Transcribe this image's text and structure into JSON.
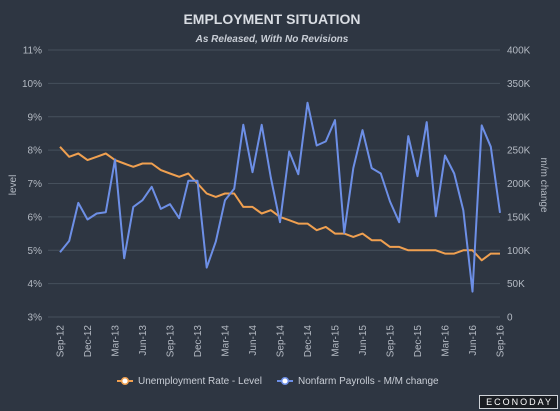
{
  "chart_data": {
    "type": "line",
    "title": "EMPLOYMENT SITUATION",
    "subtitle": "As Released, With No Revisions",
    "ylabel_left": "level",
    "ylabel_right": "m/m change",
    "x_tick_labels": [
      "Sep-12",
      "Dec-12",
      "Mar-13",
      "Jun-13",
      "Sep-13",
      "Dec-13",
      "Mar-14",
      "Jun-14",
      "Sep-14",
      "Dec-14",
      "Mar-15",
      "Jun-15",
      "Sep-15",
      "Dec-15",
      "Mar-16",
      "Jun-16",
      "Sep-16"
    ],
    "y_left_ticks": [
      "3%",
      "4%",
      "5%",
      "6%",
      "7%",
      "8%",
      "9%",
      "10%",
      "11%"
    ],
    "y_right_ticks": [
      "0",
      "50K",
      "100K",
      "150K",
      "200K",
      "250K",
      "300K",
      "350K",
      "400K"
    ],
    "y_left_range": [
      3,
      11
    ],
    "y_right_range": [
      0,
      400
    ],
    "grid": true,
    "legend_position": "bottom",
    "x": [
      "Sep-12",
      "Oct-12",
      "Nov-12",
      "Dec-12",
      "Jan-13",
      "Feb-13",
      "Mar-13",
      "Apr-13",
      "May-13",
      "Jun-13",
      "Jul-13",
      "Aug-13",
      "Sep-13",
      "Oct-13",
      "Nov-13",
      "Dec-13",
      "Jan-14",
      "Feb-14",
      "Mar-14",
      "Apr-14",
      "May-14",
      "Jun-14",
      "Jul-14",
      "Aug-14",
      "Sep-14",
      "Oct-14",
      "Nov-14",
      "Dec-14",
      "Jan-15",
      "Feb-15",
      "Mar-15",
      "Apr-15",
      "May-15",
      "Jun-15",
      "Jul-15",
      "Aug-15",
      "Sep-15",
      "Oct-15",
      "Nov-15",
      "Dec-15",
      "Jan-16",
      "Feb-16",
      "Mar-16",
      "Apr-16",
      "May-16",
      "Jun-16",
      "Jul-16",
      "Aug-16",
      "Sep-16"
    ],
    "series": [
      {
        "name": "Unemployment Rate - Level",
        "axis": "left",
        "color": "#f0a050",
        "values": [
          8.1,
          7.8,
          7.9,
          7.7,
          7.8,
          7.9,
          7.7,
          7.6,
          7.5,
          7.6,
          7.6,
          7.4,
          7.3,
          7.2,
          7.3,
          7.0,
          6.7,
          6.6,
          6.7,
          6.7,
          6.3,
          6.3,
          6.1,
          6.2,
          6.0,
          5.9,
          5.8,
          5.8,
          5.6,
          5.7,
          5.5,
          5.5,
          5.4,
          5.5,
          5.3,
          5.3,
          5.1,
          5.1,
          5.0,
          5.0,
          5.0,
          5.0,
          4.9,
          4.9,
          5.0,
          5.0,
          4.7,
          4.9,
          4.9
        ]
      },
      {
        "name": "Nonfarm Payrolls - M/M change",
        "axis": "right",
        "color": "#6d8fe6",
        "values": [
          97,
          114,
          171,
          146,
          155,
          157,
          236,
          88,
          165,
          175,
          195,
          162,
          169,
          148,
          204,
          204,
          74,
          113,
          175,
          192,
          288,
          217,
          288,
          209,
          142,
          248,
          214,
          321,
          257,
          263,
          295,
          126,
          223,
          280,
          223,
          215,
          173,
          142,
          271,
          211,
          292,
          151,
          242,
          215,
          160,
          38,
          287,
          255,
          156
        ]
      }
    ]
  },
  "watermark": "ECONODAY"
}
